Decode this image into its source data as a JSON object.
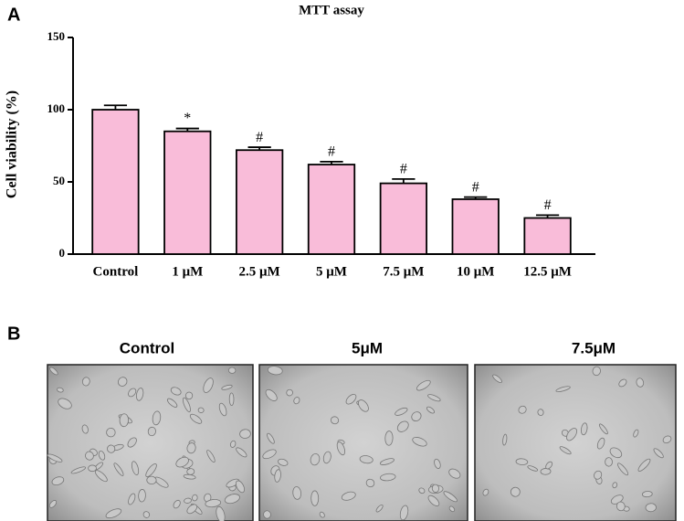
{
  "chart_data": {
    "type": "bar",
    "panel_label": "A",
    "title": "MTT assay",
    "y_label": "Cell viability (%)",
    "categories": [
      "Control",
      "1 μM",
      "2.5 μM",
      "5 μM",
      "7.5 μM",
      "10 μM",
      "12.5 μM"
    ],
    "values": [
      100,
      85,
      72,
      62,
      49,
      38,
      25
    ],
    "errors": [
      3,
      2,
      2,
      2,
      3,
      1.5,
      2
    ],
    "annotations": [
      null,
      "*",
      "#",
      "#",
      "#",
      "#",
      "#"
    ],
    "color": "#f9bcd9",
    "ylim": [
      0,
      150
    ],
    "yticks": [
      0,
      50,
      100,
      150
    ],
    "grid": false
  },
  "images": {
    "panel_label": "B",
    "captions": [
      "Control",
      "5μM",
      "7.5μM"
    ]
  }
}
